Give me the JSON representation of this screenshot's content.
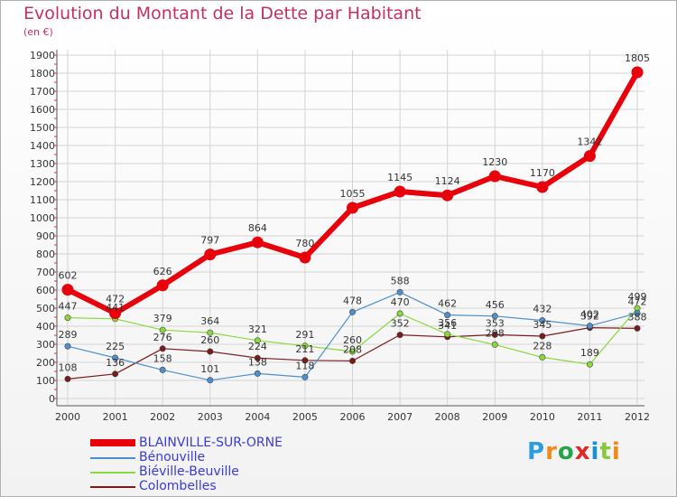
{
  "header": {
    "title": "Evolution du Montant de la Dette par Habitant",
    "unit": "(en €)"
  },
  "logo": {
    "text": "Proxiti",
    "letters": [
      "P",
      "r",
      "o",
      "x",
      "i",
      "t",
      "i"
    ],
    "colors": [
      "#2d9de0",
      "#f08a1c",
      "#27a34a",
      "#e02a2a",
      "#1a8fd8",
      "#8cc63f",
      "#f08a1c"
    ]
  },
  "chart_data": {
    "type": "line",
    "title": "Evolution du Montant de la Dette par Habitant",
    "subtitle": "(en €)",
    "xlabel": "",
    "ylabel": "",
    "x": [
      "2000",
      "2001",
      "2002",
      "2003",
      "2004",
      "2005",
      "2006",
      "2007",
      "2008",
      "2009",
      "2010",
      "2011",
      "2012"
    ],
    "ylim": [
      0,
      1900
    ],
    "yticks": [
      0,
      100,
      200,
      300,
      400,
      500,
      600,
      700,
      800,
      900,
      1000,
      1100,
      1200,
      1300,
      1400,
      1500,
      1600,
      1700,
      1800,
      1900
    ],
    "grid": true,
    "legend_position": "bottom-left",
    "series": [
      {
        "name": "BLAINVILLE-SUR-ORNE",
        "color": "#e8000b",
        "width": 6,
        "marker": 6.5,
        "values": [
          602,
          472,
          626,
          797,
          864,
          780,
          1055,
          1145,
          1124,
          1230,
          1170,
          1342,
          1805
        ],
        "labels": [
          "602",
          "472",
          "626",
          "797",
          "864",
          "780",
          "1055",
          "1145",
          "1124",
          "1230",
          "1170",
          "1342",
          "1805"
        ]
      },
      {
        "name": "Bénouville",
        "color": "#4e90cd",
        "width": 1.2,
        "marker": 3.2,
        "values": [
          289,
          225,
          158,
          101,
          138,
          118,
          478,
          588,
          462,
          456,
          432,
          402,
          472
        ],
        "labels": [
          "289",
          "225",
          "158",
          "101",
          "138",
          "118",
          "478",
          "588",
          "462",
          "456",
          "432",
          "402",
          "472"
        ]
      },
      {
        "name": "Biéville-Beuville",
        "color": "#8bd83c",
        "width": 1.2,
        "marker": 3.2,
        "values": [
          447,
          441,
          379,
          364,
          321,
          291,
          260,
          470,
          356,
          298,
          228,
          189,
          499
        ],
        "labels": [
          "447",
          "441",
          "379",
          "364",
          "321",
          "291",
          "260",
          "470",
          "356",
          "298",
          "228",
          "189",
          "499"
        ]
      },
      {
        "name": "Colombelles",
        "color": "#7a1a1a",
        "width": 1.2,
        "marker": 3.2,
        "values": [
          108,
          136,
          276,
          260,
          224,
          211,
          208,
          352,
          341,
          353,
          345,
          392,
          388
        ],
        "labels": [
          "108",
          "136",
          "276",
          "260",
          "224",
          "211",
          "208",
          "352",
          "341",
          "353",
          "345",
          "392",
          "388"
        ]
      }
    ]
  }
}
